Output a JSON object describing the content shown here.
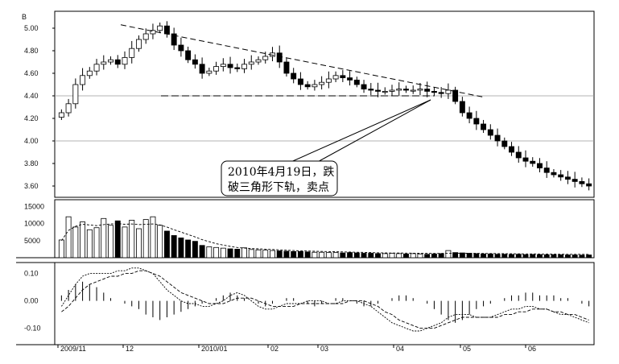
{
  "chart_data": [
    {
      "type": "candlestick",
      "panel": "price",
      "y_ticks": [
        "5.00",
        "4.80",
        "4.60",
        "4.40",
        "4.20",
        "4.00",
        "3.80",
        "3.60"
      ],
      "ylim": [
        3.5,
        5.15
      ],
      "reference_lines": [
        4.4,
        4.0
      ],
      "trend_line": {
        "from": [
          "2009-12",
          5.03
        ],
        "to": [
          "2010-05",
          4.38
        ],
        "style": "dashed"
      },
      "support_line": {
        "value": 4.4,
        "style": "dashed"
      },
      "annotation": {
        "lines": [
          "2010年4月19日，跌",
          "破三角形下轨，卖点"
        ]
      },
      "series": [
        {
          "values": [
            4.25,
            4.33,
            4.5,
            4.58,
            4.62,
            4.68,
            4.7,
            4.72,
            4.68,
            4.74,
            4.82,
            4.9,
            4.95,
            4.98,
            5.02,
            4.95,
            4.85,
            4.8,
            4.72,
            4.68,
            4.6,
            4.62,
            4.66,
            4.68,
            4.65,
            4.64,
            4.68,
            4.7,
            4.72,
            4.75,
            4.78,
            4.7,
            4.6,
            4.55,
            4.5,
            4.48,
            4.5,
            4.52,
            4.55,
            4.58,
            4.56,
            4.54,
            4.5,
            4.46,
            4.45,
            4.44,
            4.44,
            4.45,
            4.46,
            4.45,
            4.45,
            4.46,
            4.44,
            4.43,
            4.42,
            4.45,
            4.35,
            4.25,
            4.2,
            4.15,
            4.1,
            4.05,
            4.0,
            3.95,
            3.9,
            3.85,
            3.82,
            3.8,
            3.76,
            3.72,
            3.7,
            3.68,
            3.66,
            3.64,
            3.62,
            3.6
          ]
        }
      ]
    },
    {
      "type": "bar",
      "panel": "volume",
      "y_ticks": [
        "15000",
        "10000",
        "5000"
      ],
      "ylim": [
        0,
        17000
      ],
      "series": [
        {
          "values": [
            5200,
            12000,
            9000,
            10500,
            8200,
            8800,
            11500,
            9500,
            10800,
            9000,
            11000,
            8500,
            11200,
            12000,
            9500,
            7800,
            6500,
            5800,
            5200,
            4800,
            3600,
            3200,
            3000,
            2800,
            2600,
            2500,
            2900,
            2400,
            2300,
            2200,
            2100,
            2000,
            1900,
            1800,
            1800,
            1700,
            1600,
            1600,
            1500,
            1500,
            1400,
            1500,
            1400,
            1300,
            1300,
            1200,
            1200,
            1300,
            1200,
            1100,
            1200,
            1100,
            1000,
            1100,
            1200,
            2100,
            1500,
            1400,
            1300,
            1200,
            1100,
            1100,
            1000,
            1000,
            950,
            1000,
            900,
            950,
            900,
            850,
            900,
            850,
            800,
            800,
            750,
            800
          ]
        },
        {
          "values": [
            5000,
            8000,
            9200,
            9800,
            9600,
            9400,
            9700,
            9900,
            10000,
            9800,
            9900,
            9700,
            9800,
            9900,
            9600,
            9000,
            8200,
            7500,
            6800,
            6100,
            5300,
            4700,
            4100,
            3700,
            3300,
            3000,
            2800,
            2700,
            2600,
            2500,
            2400,
            2300,
            2200,
            2100,
            2000,
            1950,
            1900,
            1850,
            1800,
            1750,
            1700,
            1650,
            1600,
            1550,
            1500,
            1450,
            1400,
            1380,
            1360,
            1340,
            1320,
            1300,
            1280,
            1260,
            1250,
            1300,
            1320,
            1310,
            1300,
            1280,
            1250,
            1220,
            1200,
            1180,
            1160,
            1140,
            1120,
            1100,
            1080,
            1060,
            1040,
            1020,
            1000,
            990,
            980,
            970
          ]
        }
      ]
    },
    {
      "type": "bar",
      "panel": "indicator",
      "y_ticks": [
        "0.10",
        "0.00",
        "-0.10"
      ],
      "ylim": [
        -0.16,
        0.14
      ],
      "series": [
        {
          "values": [
            0.02,
            0.04,
            0.06,
            0.07,
            0.06,
            0.05,
            0.03,
            0.01,
            0.0,
            -0.01,
            -0.02,
            -0.03,
            -0.05,
            -0.06,
            -0.07,
            -0.06,
            -0.05,
            -0.04,
            -0.03,
            -0.02,
            -0.01,
            0.0,
            0.01,
            0.02,
            0.03,
            0.02,
            0.01,
            0.0,
            -0.01,
            -0.02,
            -0.01,
            0.0,
            0.01,
            0.01,
            0.0,
            -0.01,
            -0.02,
            -0.01,
            0.0,
            0.01,
            0.01,
            0.0,
            -0.01,
            -0.02,
            -0.02,
            -0.01,
            0.0,
            0.01,
            0.02,
            0.02,
            0.01,
            0.0,
            -0.01,
            -0.03,
            -0.05,
            -0.07,
            -0.08,
            -0.07,
            -0.05,
            -0.03,
            -0.02,
            -0.01,
            0.0,
            0.01,
            0.02,
            0.02,
            0.03,
            0.03,
            0.02,
            0.02,
            0.02,
            0.01,
            0.01,
            0.0,
            -0.01,
            -0.02
          ]
        },
        {
          "values": [
            -0.02,
            0.02,
            0.06,
            0.09,
            0.1,
            0.1,
            0.1,
            0.1,
            0.11,
            0.11,
            0.12,
            0.12,
            0.11,
            0.1,
            0.07,
            0.04,
            0.02,
            0.0,
            -0.01,
            -0.01,
            -0.02,
            -0.02,
            -0.01,
            0.0,
            0.02,
            0.03,
            0.02,
            0.0,
            -0.02,
            -0.03,
            -0.03,
            -0.02,
            -0.01,
            -0.01,
            -0.01,
            0.0,
            0.0,
            0.0,
            -0.01,
            -0.01,
            0.0,
            0.0,
            0.0,
            -0.01,
            -0.02,
            -0.04,
            -0.06,
            -0.08,
            -0.09,
            -0.1,
            -0.11,
            -0.11,
            -0.1,
            -0.09,
            -0.08,
            -0.06,
            -0.05,
            -0.05,
            -0.05,
            -0.06,
            -0.06,
            -0.06,
            -0.05,
            -0.04,
            -0.03,
            -0.03,
            -0.02,
            -0.02,
            -0.03,
            -0.03,
            -0.04,
            -0.05,
            -0.05,
            -0.06,
            -0.07,
            -0.08
          ]
        },
        {
          "values": [
            -0.04,
            -0.02,
            0.01,
            0.04,
            0.06,
            0.07,
            0.08,
            0.09,
            0.09,
            0.1,
            0.1,
            0.11,
            0.11,
            0.1,
            0.09,
            0.07,
            0.05,
            0.03,
            0.02,
            0.01,
            0.0,
            -0.01,
            -0.01,
            -0.01,
            0.0,
            0.01,
            0.01,
            0.01,
            0.0,
            -0.01,
            -0.02,
            -0.02,
            -0.02,
            -0.02,
            -0.01,
            -0.01,
            -0.01,
            -0.01,
            -0.01,
            -0.01,
            -0.01,
            0.0,
            0.0,
            0.0,
            -0.01,
            -0.02,
            -0.04,
            -0.05,
            -0.07,
            -0.08,
            -0.09,
            -0.1,
            -0.1,
            -0.1,
            -0.09,
            -0.08,
            -0.07,
            -0.06,
            -0.06,
            -0.06,
            -0.06,
            -0.06,
            -0.06,
            -0.05,
            -0.05,
            -0.04,
            -0.04,
            -0.03,
            -0.03,
            -0.03,
            -0.04,
            -0.04,
            -0.05,
            -0.05,
            -0.06,
            -0.07
          ]
        }
      ]
    }
  ],
  "x_ticks": [
    "2009/11",
    "12",
    "2010/01",
    "02",
    "03",
    "04",
    "05",
    "06"
  ],
  "corner_label": "B"
}
